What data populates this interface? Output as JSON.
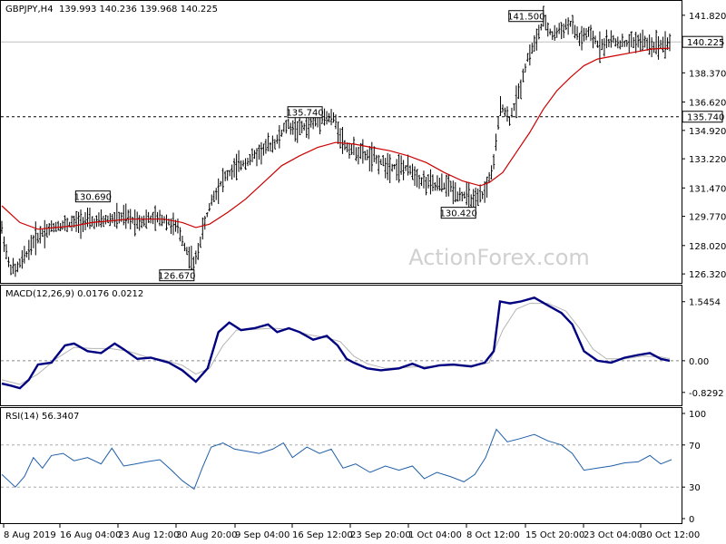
{
  "header": {
    "symbol": "GBPJPY,H4",
    "ohlc": "139.993 140.236 139.968 140.225"
  },
  "watermark": "ActionForex.com",
  "colors": {
    "price": "#000000",
    "ma": "#cc0000",
    "macd": "#000080",
    "signal": "#b4b4b4",
    "rsi": "#1f5fa8"
  },
  "chart_data": [
    {
      "type": "ohlc",
      "title": "GBPJPY,H4",
      "y_ticks": [
        "141.820",
        "140.225",
        "138.370",
        "136.620",
        "134.920",
        "133.220",
        "131.470",
        "129.770",
        "128.020",
        "126.320"
      ],
      "ylim": [
        126.0,
        142.3
      ],
      "x_labels": [
        "8 Aug 2019",
        "16 Aug 04:00",
        "23 Aug 12:00",
        "30 Aug 20:00",
        "9 Sep 04:00",
        "16 Sep 12:00",
        "23 Sep 20:00",
        "1 Oct 04:00",
        "8 Oct 12:00",
        "15 Oct 20:00",
        "23 Oct 04:00",
        "30 Oct 12:00"
      ],
      "price_path": [
        [
          0,
          129.0
        ],
        [
          8,
          126.8
        ],
        [
          15,
          126.5
        ],
        [
          25,
          127.3
        ],
        [
          35,
          128.3
        ],
        [
          45,
          128.8
        ],
        [
          60,
          129.2
        ],
        [
          75,
          129.3
        ],
        [
          90,
          129.5
        ],
        [
          105,
          129.4
        ],
        [
          120,
          129.6
        ],
        [
          135,
          129.7
        ],
        [
          150,
          129.5
        ],
        [
          165,
          129.6
        ],
        [
          180,
          129.6
        ],
        [
          195,
          129.0
        ],
        [
          205,
          127.7
        ],
        [
          213,
          126.7
        ],
        [
          222,
          128.8
        ],
        [
          232,
          130.7
        ],
        [
          245,
          132.0
        ],
        [
          260,
          132.7
        ],
        [
          275,
          133.2
        ],
        [
          290,
          133.8
        ],
        [
          305,
          134.3
        ],
        [
          315,
          135.2
        ],
        [
          330,
          135.0
        ],
        [
          345,
          135.4
        ],
        [
          355,
          135.7
        ],
        [
          368,
          135.6
        ],
        [
          380,
          134.0
        ],
        [
          395,
          133.6
        ],
        [
          410,
          133.3
        ],
        [
          425,
          132.9
        ],
        [
          440,
          132.7
        ],
        [
          455,
          132.5
        ],
        [
          465,
          131.9
        ],
        [
          480,
          131.6
        ],
        [
          495,
          131.6
        ],
        [
          505,
          131.1
        ],
        [
          515,
          131.0
        ],
        [
          525,
          130.6
        ],
        [
          535,
          131.2
        ],
        [
          545,
          132.9
        ],
        [
          553,
          136.6
        ],
        [
          562,
          135.5
        ],
        [
          572,
          137.0
        ],
        [
          582,
          139.2
        ],
        [
          592,
          140.3
        ],
        [
          600,
          141.5
        ],
        [
          610,
          140.6
        ],
        [
          620,
          141.0
        ],
        [
          630,
          141.3
        ],
        [
          640,
          140.4
        ],
        [
          650,
          140.7
        ],
        [
          662,
          140.0
        ],
        [
          675,
          140.3
        ],
        [
          690,
          140.1
        ],
        [
          705,
          140.3
        ],
        [
          720,
          140.0
        ],
        [
          740,
          140.2
        ]
      ],
      "ma_path": [
        [
          0,
          130.4
        ],
        [
          20,
          129.4
        ],
        [
          40,
          129.0
        ],
        [
          60,
          129.1
        ],
        [
          80,
          129.2
        ],
        [
          100,
          129.4
        ],
        [
          120,
          129.5
        ],
        [
          140,
          129.6
        ],
        [
          160,
          129.6
        ],
        [
          180,
          129.6
        ],
        [
          200,
          129.4
        ],
        [
          215,
          129.1
        ],
        [
          230,
          129.3
        ],
        [
          250,
          130.0
        ],
        [
          270,
          130.8
        ],
        [
          290,
          131.8
        ],
        [
          310,
          132.8
        ],
        [
          330,
          133.4
        ],
        [
          350,
          133.9
        ],
        [
          370,
          134.2
        ],
        [
          390,
          134.1
        ],
        [
          410,
          133.9
        ],
        [
          430,
          133.7
        ],
        [
          450,
          133.4
        ],
        [
          470,
          133.0
        ],
        [
          490,
          132.4
        ],
        [
          510,
          131.9
        ],
        [
          530,
          131.6
        ],
        [
          540,
          131.8
        ],
        [
          555,
          132.4
        ],
        [
          570,
          133.6
        ],
        [
          585,
          134.8
        ],
        [
          600,
          136.2
        ],
        [
          615,
          137.3
        ],
        [
          630,
          138.1
        ],
        [
          645,
          138.8
        ],
        [
          660,
          139.2
        ],
        [
          680,
          139.4
        ],
        [
          700,
          139.6
        ],
        [
          720,
          139.8
        ],
        [
          740,
          139.85
        ]
      ],
      "levels": [
        {
          "label": "141.500",
          "price": 141.5,
          "kind": "high"
        },
        {
          "label": "135.740",
          "price": 135.74,
          "kind": "high"
        },
        {
          "label": "130.690",
          "price": 130.69,
          "kind": "high"
        },
        {
          "label": "130.420",
          "price": 130.42,
          "kind": "low"
        },
        {
          "label": "126.670",
          "price": 126.67,
          "kind": "low"
        }
      ],
      "current_price": "140.225",
      "dashed_level": "135.740"
    },
    {
      "type": "line",
      "title": "MACD(12,26,9) 0.0176 0.0212",
      "y_ticks": [
        "1.5454",
        "0.00",
        "-0.8292"
      ],
      "ylim": [
        -1.0,
        1.8
      ],
      "series": [
        {
          "name": "MACD",
          "values": [
            [
              0,
              -0.6
            ],
            [
              10,
              -0.65
            ],
            [
              20,
              -0.72
            ],
            [
              30,
              -0.5
            ],
            [
              40,
              -0.1
            ],
            [
              55,
              -0.05
            ],
            [
              70,
              0.4
            ],
            [
              80,
              0.45
            ],
            [
              95,
              0.25
            ],
            [
              110,
              0.2
            ],
            [
              125,
              0.45
            ],
            [
              135,
              0.3
            ],
            [
              150,
              0.05
            ],
            [
              165,
              0.08
            ],
            [
              185,
              -0.05
            ],
            [
              200,
              -0.25
            ],
            [
              215,
              -0.55
            ],
            [
              228,
              -0.2
            ],
            [
              240,
              0.75
            ],
            [
              252,
              1.0
            ],
            [
              265,
              0.8
            ],
            [
              280,
              0.85
            ],
            [
              295,
              0.95
            ],
            [
              305,
              0.75
            ],
            [
              318,
              0.85
            ],
            [
              330,
              0.75
            ],
            [
              345,
              0.55
            ],
            [
              360,
              0.65
            ],
            [
              372,
              0.4
            ],
            [
              382,
              0.05
            ],
            [
              390,
              -0.05
            ],
            [
              405,
              -0.2
            ],
            [
              420,
              -0.25
            ],
            [
              440,
              -0.2
            ],
            [
              455,
              -0.08
            ],
            [
              468,
              -0.2
            ],
            [
              485,
              -0.12
            ],
            [
              500,
              -0.1
            ],
            [
              520,
              -0.15
            ],
            [
              535,
              -0.05
            ],
            [
              545,
              0.25
            ],
            [
              552,
              1.55
            ],
            [
              563,
              1.5
            ],
            [
              575,
              1.55
            ],
            [
              590,
              1.65
            ],
            [
              605,
              1.45
            ],
            [
              620,
              1.25
            ],
            [
              632,
              0.95
            ],
            [
              645,
              0.25
            ],
            [
              660,
              0.0
            ],
            [
              675,
              -0.05
            ],
            [
              690,
              0.08
            ],
            [
              705,
              0.15
            ],
            [
              718,
              0.2
            ],
            [
              730,
              0.05
            ],
            [
              740,
              0.0
            ]
          ]
        },
        {
          "name": "Signal",
          "values": [
            [
              0,
              -0.5
            ],
            [
              20,
              -0.62
            ],
            [
              40,
              -0.35
            ],
            [
              60,
              0.05
            ],
            [
              80,
              0.35
            ],
            [
              100,
              0.32
            ],
            [
              120,
              0.32
            ],
            [
              140,
              0.25
            ],
            [
              160,
              0.1
            ],
            [
              180,
              0.02
            ],
            [
              200,
              -0.12
            ],
            [
              215,
              -0.35
            ],
            [
              230,
              -0.2
            ],
            [
              245,
              0.4
            ],
            [
              260,
              0.8
            ],
            [
              280,
              0.82
            ],
            [
              300,
              0.85
            ],
            [
              320,
              0.82
            ],
            [
              340,
              0.68
            ],
            [
              360,
              0.6
            ],
            [
              375,
              0.5
            ],
            [
              390,
              0.12
            ],
            [
              405,
              -0.08
            ],
            [
              425,
              -0.2
            ],
            [
              445,
              -0.18
            ],
            [
              465,
              -0.15
            ],
            [
              485,
              -0.14
            ],
            [
              505,
              -0.12
            ],
            [
              525,
              -0.12
            ],
            [
              540,
              -0.05
            ],
            [
              555,
              0.8
            ],
            [
              570,
              1.35
            ],
            [
              585,
              1.5
            ],
            [
              605,
              1.5
            ],
            [
              625,
              1.3
            ],
            [
              640,
              0.85
            ],
            [
              655,
              0.3
            ],
            [
              670,
              0.05
            ],
            [
              690,
              0.05
            ],
            [
              710,
              0.12
            ],
            [
              730,
              0.1
            ],
            [
              740,
              0.05
            ]
          ]
        }
      ]
    },
    {
      "type": "line",
      "title": "RSI(14) 56.3407",
      "y_ticks": [
        "100",
        "70",
        "30",
        "0"
      ],
      "ylim": [
        0,
        100
      ],
      "series": [
        {
          "name": "RSI",
          "values": [
            [
              0,
              42
            ],
            [
              15,
              30
            ],
            [
              25,
              40
            ],
            [
              35,
              58
            ],
            [
              45,
              48
            ],
            [
              55,
              60
            ],
            [
              68,
              62
            ],
            [
              80,
              55
            ],
            [
              95,
              58
            ],
            [
              110,
              52
            ],
            [
              122,
              67
            ],
            [
              135,
              50
            ],
            [
              148,
              52
            ],
            [
              160,
              54
            ],
            [
              175,
              56
            ],
            [
              188,
              46
            ],
            [
              200,
              36
            ],
            [
              213,
              28
            ],
            [
              222,
              48
            ],
            [
              232,
              68
            ],
            [
              245,
              72
            ],
            [
              258,
              66
            ],
            [
              272,
              64
            ],
            [
              285,
              62
            ],
            [
              300,
              66
            ],
            [
              312,
              72
            ],
            [
              322,
              58
            ],
            [
              338,
              68
            ],
            [
              352,
              62
            ],
            [
              365,
              66
            ],
            [
              378,
              48
            ],
            [
              392,
              52
            ],
            [
              408,
              44
            ],
            [
              425,
              50
            ],
            [
              440,
              46
            ],
            [
              455,
              50
            ],
            [
              468,
              38
            ],
            [
              482,
              44
            ],
            [
              497,
              40
            ],
            [
              512,
              35
            ],
            [
              524,
              42
            ],
            [
              536,
              58
            ],
            [
              548,
              85
            ],
            [
              560,
              73
            ],
            [
              574,
              76
            ],
            [
              590,
              80
            ],
            [
              605,
              74
            ],
            [
              620,
              70
            ],
            [
              632,
              62
            ],
            [
              645,
              46
            ],
            [
              660,
              48
            ],
            [
              675,
              50
            ],
            [
              690,
              53
            ],
            [
              705,
              54
            ],
            [
              718,
              60
            ],
            [
              730,
              52
            ],
            [
              742,
              56
            ]
          ]
        }
      ]
    }
  ]
}
